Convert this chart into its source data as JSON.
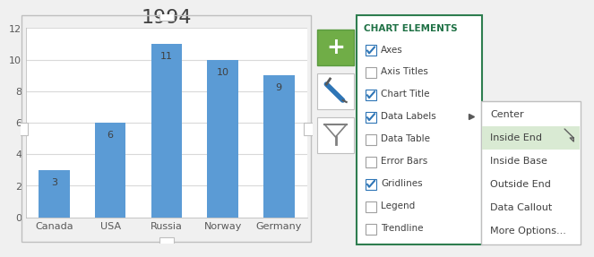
{
  "title": "1994",
  "categories": [
    "Canada",
    "USA",
    "Russia",
    "Norway",
    "Germany"
  ],
  "values": [
    3,
    6,
    11,
    10,
    9
  ],
  "bar_color": "#5B9BD5",
  "ylim": [
    0,
    12
  ],
  "yticks": [
    0,
    2,
    4,
    6,
    8,
    10,
    12
  ],
  "chart_elements": [
    "Axes",
    "Axis Titles",
    "Chart Title",
    "Data Labels",
    "Data Table",
    "Error Bars",
    "Gridlines",
    "Legend",
    "Trendline"
  ],
  "checked": [
    true,
    false,
    true,
    true,
    false,
    false,
    true,
    false,
    false
  ],
  "arrow_row": 3,
  "submenu_items": [
    "Center",
    "Inside End",
    "Inside Base",
    "Outside End",
    "Data Callout",
    "More Options..."
  ],
  "submenu_highlighted": 1,
  "title_fontsize": 16,
  "axis_fontsize": 8,
  "label_fontsize": 8,
  "grid_color": "#D9D9D9",
  "green_header_color": "#1F7145",
  "panel_border_color": "#2E7D4F",
  "checkbox_check_color": "#2E75B6",
  "submenu_highlight_color": "#D9EAD3",
  "submenu_border_color": "#2E7D4F",
  "bg_color": "#F0F0F0"
}
